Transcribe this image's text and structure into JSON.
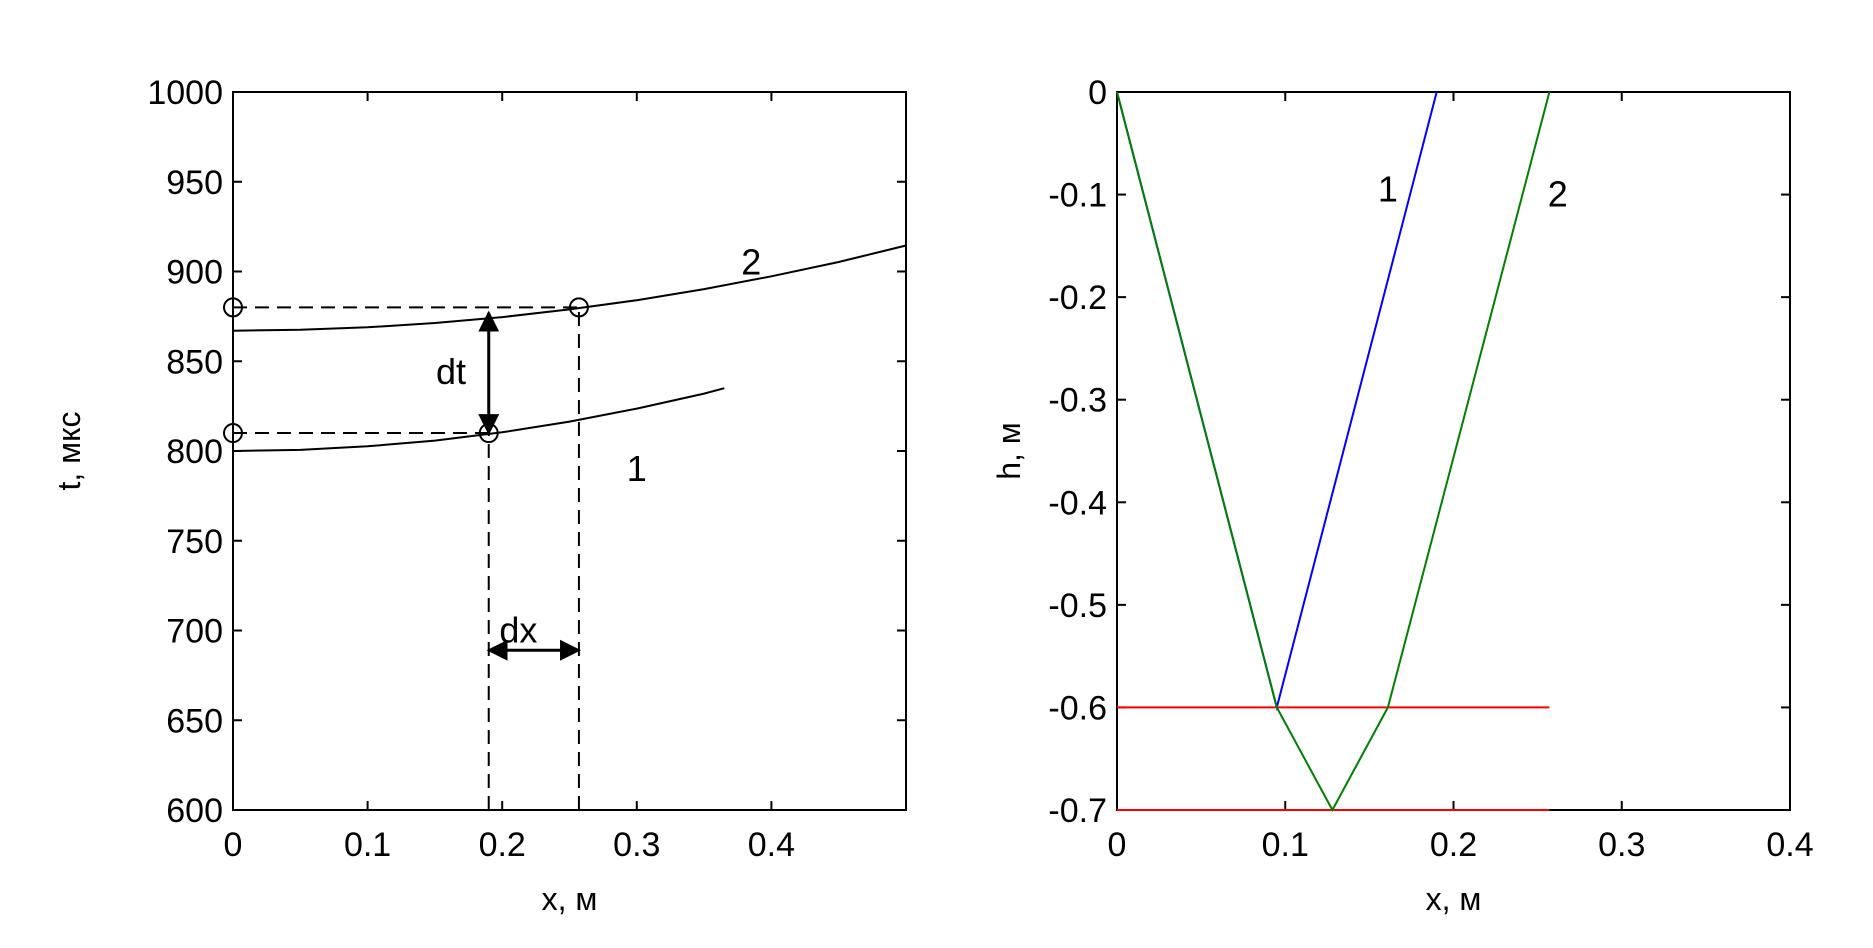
{
  "chart_data": [
    {
      "type": "line",
      "xlabel": "x, м",
      "ylabel": "t, мкс",
      "xlim": [
        0,
        0.5
      ],
      "ylim": [
        600,
        1000
      ],
      "xticks": [
        "0",
        "0.1",
        "0.2",
        "0.3",
        "0.4"
      ],
      "xtick_values": [
        0,
        0.1,
        0.2,
        0.3,
        0.4
      ],
      "yticks": [
        "600",
        "650",
        "700",
        "750",
        "800",
        "850",
        "900",
        "950",
        "1000"
      ],
      "ytick_values": [
        600,
        650,
        700,
        750,
        800,
        850,
        900,
        950,
        1000
      ],
      "grid": false,
      "series": [
        {
          "name": "1",
          "color": "#000000",
          "x": [
            0,
            0.05,
            0.1,
            0.15,
            0.2,
            0.25,
            0.3,
            0.35,
            0.365
          ],
          "y": [
            800,
            800.6,
            802.6,
            805.8,
            810.4,
            816.4,
            823.6,
            832.0,
            835.0
          ]
        },
        {
          "name": "2",
          "color": "#000000",
          "x": [
            0,
            0.05,
            0.1,
            0.15,
            0.2,
            0.25,
            0.3,
            0.35,
            0.4,
            0.45,
            0.5
          ],
          "y": [
            867,
            867.5,
            868.9,
            871.3,
            874.6,
            878.9,
            884.0,
            890.2,
            897.3,
            905.3,
            914.5
          ]
        }
      ],
      "markers": [
        {
          "x": 0,
          "y": 880
        },
        {
          "x": 0.257,
          "y": 880
        },
        {
          "x": 0,
          "y": 810
        },
        {
          "x": 0.19,
          "y": 810
        }
      ],
      "dashed_lines": [
        {
          "x1": 0,
          "y1": 880,
          "x2": 0.257,
          "y2": 880
        },
        {
          "x1": 0,
          "y1": 810,
          "x2": 0.19,
          "y2": 810
        },
        {
          "x1": 0.19,
          "y1": 600,
          "x2": 0.19,
          "y2": 810
        },
        {
          "x1": 0.257,
          "y1": 600,
          "x2": 0.257,
          "y2": 880
        }
      ],
      "arrows": [
        {
          "label": "dt",
          "x1": 0.19,
          "y1": 810,
          "x2": 0.19,
          "y2": 877,
          "label_x": 0.162,
          "label_y": 844
        },
        {
          "label": "dx",
          "x1": 0.19,
          "y1": 689,
          "x2": 0.257,
          "y2": 689,
          "label_x": 0.212,
          "label_y": 700
        }
      ],
      "labels": [
        {
          "text": "2",
          "x": 0.385,
          "y": 905
        },
        {
          "text": "1",
          "x": 0.3,
          "y": 790
        }
      ]
    },
    {
      "type": "line",
      "xlabel": "x, м",
      "ylabel": "h, м",
      "xlim": [
        0,
        0.4
      ],
      "ylim": [
        -0.7,
        0
      ],
      "xticks": [
        "0",
        "0.1",
        "0.2",
        "0.3",
        "0.4"
      ],
      "xtick_values": [
        0,
        0.1,
        0.2,
        0.3,
        0.4
      ],
      "yticks": [
        "-0.7",
        "-0.6",
        "-0.5",
        "-0.4",
        "-0.3",
        "-0.2",
        "-0.1",
        "0"
      ],
      "ytick_values": [
        -0.7,
        -0.6,
        -0.5,
        -0.4,
        -0.3,
        -0.2,
        -0.1,
        0
      ],
      "grid": false,
      "series": [
        {
          "name": "1",
          "color": "#0000ff",
          "x": [
            0,
            0.095,
            0.19
          ],
          "y": [
            0,
            -0.6,
            0
          ]
        },
        {
          "name": "2",
          "color": "#008000",
          "x": [
            0,
            0.095,
            0.128,
            0.161,
            0.257
          ],
          "y": [
            0,
            -0.6,
            -0.7,
            -0.6,
            0
          ]
        }
      ],
      "hlines": [
        {
          "y": -0.6,
          "x1": 0,
          "x2": 0.257,
          "color": "#ff0000"
        },
        {
          "y": -0.7,
          "x1": 0,
          "x2": 0.257,
          "color": "#ff0000"
        }
      ],
      "labels": [
        {
          "text": "1",
          "x": 0.161,
          "y": -0.095
        },
        {
          "text": "2",
          "x": 0.262,
          "y": -0.1
        }
      ]
    }
  ]
}
